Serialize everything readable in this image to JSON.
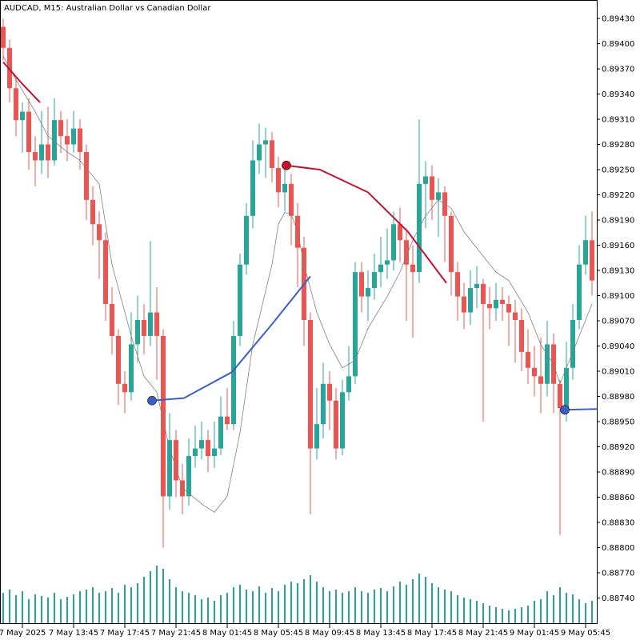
{
  "chart_data": {
    "type": "candlestick",
    "title": "AUDCAD, M15:  Australian Dollar vs Canadian Dollar",
    "up_color": "#26a69a",
    "down_color": "#ef5350",
    "open": [
      0.8942,
      0.89395,
      0.89347,
      0.89309,
      0.89319,
      0.89271,
      0.89261,
      0.8928,
      0.89261,
      0.89309,
      0.8929,
      0.8928,
      0.89299,
      0.89271,
      0.89214,
      0.89185,
      0.89166,
      0.8909,
      0.89052,
      0.88995,
      0.88985,
      0.89042,
      0.89071,
      0.89052,
      0.8908,
      0.89052,
      0.88861,
      0.88928,
      0.8888,
      0.88861,
      0.88909,
      0.88918,
      0.88928,
      0.88909,
      0.88918,
      0.88956,
      0.88947,
      0.89052,
      0.89137,
      0.89195,
      0.89261,
      0.8928,
      0.89285,
      0.89252,
      0.89223,
      0.89233,
      0.89195,
      0.89157,
      0.89071,
      0.88918,
      0.88947,
      0.88995,
      0.88975,
      0.88918,
      0.88985,
      0.89004,
      0.89128,
      0.89099,
      0.89109,
      0.89128,
      0.89137,
      0.89142,
      0.89185,
      0.89166,
      0.89137,
      0.89128,
      0.89233,
      0.89242,
      0.89214,
      0.89223,
      0.89195,
      0.89128,
      0.89099,
      0.8908,
      0.89109,
      0.89114,
      0.8909,
      0.89085,
      0.89095,
      0.8909,
      0.8908,
      0.89071,
      0.89033,
      0.89014,
      0.89004,
      0.88995,
      0.89042,
      0.88995,
      0.88966,
      0.89014,
      0.89071,
      0.89137,
      0.89166
    ],
    "high": [
      0.8943,
      0.89405,
      0.8936,
      0.8933,
      0.89335,
      0.8929,
      0.8932,
      0.89325,
      0.89335,
      0.8932,
      0.8931,
      0.8932,
      0.8931,
      0.8928,
      0.8923,
      0.892,
      0.89175,
      0.8911,
      0.8906,
      0.8901,
      0.8908,
      0.891,
      0.8909,
      0.89165,
      0.8911,
      0.8906,
      0.8896,
      0.8894,
      0.889,
      0.8893,
      0.88945,
      0.8895,
      0.8894,
      0.8895,
      0.8898,
      0.8899,
      0.8907,
      0.8915,
      0.8921,
      0.89285,
      0.89305,
      0.893,
      0.89295,
      0.89265,
      0.8925,
      0.89245,
      0.8921,
      0.8917,
      0.8908,
      0.8899,
      0.8902,
      0.8901,
      0.8899,
      0.89,
      0.8904,
      0.8914,
      0.8914,
      0.8913,
      0.8915,
      0.8917,
      0.8918,
      0.892,
      0.89205,
      0.8918,
      0.8916,
      0.8931,
      0.8926,
      0.89255,
      0.8924,
      0.8923,
      0.892,
      0.8914,
      0.89115,
      0.8913,
      0.89135,
      0.8912,
      0.8911,
      0.89115,
      0.8911,
      0.891,
      0.89095,
      0.89085,
      0.8906,
      0.8904,
      0.8905,
      0.8907,
      0.89055,
      0.89,
      0.89045,
      0.8909,
      0.8916,
      0.89195,
      0.892
    ],
    "low": [
      0.8938,
      0.8933,
      0.8929,
      0.8927,
      0.8925,
      0.8923,
      0.89245,
      0.8924,
      0.89255,
      0.8927,
      0.8926,
      0.8927,
      0.8925,
      0.8919,
      0.8916,
      0.8912,
      0.8907,
      0.8903,
      0.8897,
      0.8896,
      0.88975,
      0.8902,
      0.8903,
      0.8904,
      0.89,
      0.888,
      0.88845,
      0.8886,
      0.8884,
      0.8885,
      0.88895,
      0.88905,
      0.8889,
      0.88895,
      0.8891,
      0.8894,
      0.8894,
      0.8904,
      0.89125,
      0.8918,
      0.89245,
      0.8924,
      0.89235,
      0.89205,
      0.892,
      0.8916,
      0.8911,
      0.8904,
      0.8884,
      0.88905,
      0.8893,
      0.8894,
      0.88905,
      0.8891,
      0.88975,
      0.88995,
      0.8908,
      0.8907,
      0.89095,
      0.8911,
      0.8912,
      0.8913,
      0.8914,
      0.8907,
      0.8905,
      0.89115,
      0.8918,
      0.8919,
      0.8917,
      0.8914,
      0.891,
      0.8907,
      0.8906,
      0.89065,
      0.89085,
      0.8895,
      0.8906,
      0.8907,
      0.8907,
      0.8904,
      0.8902,
      0.8901,
      0.88995,
      0.8898,
      0.8896,
      0.8898,
      0.8896,
      0.88815,
      0.8895,
      0.89,
      0.8906,
      0.89125,
      0.891
    ],
    "close": [
      0.89395,
      0.89347,
      0.89309,
      0.89319,
      0.89271,
      0.89261,
      0.8928,
      0.89261,
      0.89309,
      0.8929,
      0.8928,
      0.89299,
      0.89271,
      0.89214,
      0.89185,
      0.89166,
      0.8909,
      0.89052,
      0.88995,
      0.88985,
      0.89042,
      0.89071,
      0.89052,
      0.8908,
      0.89052,
      0.88861,
      0.88928,
      0.8888,
      0.88861,
      0.88909,
      0.88918,
      0.88928,
      0.88909,
      0.88918,
      0.88956,
      0.88947,
      0.89052,
      0.89137,
      0.89195,
      0.89261,
      0.8928,
      0.89285,
      0.89252,
      0.89223,
      0.89233,
      0.89195,
      0.89157,
      0.89071,
      0.88918,
      0.88947,
      0.88995,
      0.88975,
      0.88918,
      0.88985,
      0.89004,
      0.89128,
      0.89099,
      0.89109,
      0.89128,
      0.89137,
      0.89142,
      0.89185,
      0.89166,
      0.89137,
      0.89128,
      0.89233,
      0.89242,
      0.89214,
      0.89223,
      0.89195,
      0.89128,
      0.89099,
      0.8908,
      0.89109,
      0.89114,
      0.8909,
      0.89085,
      0.89095,
      0.8909,
      0.8908,
      0.89071,
      0.89033,
      0.89014,
      0.89004,
      0.88995,
      0.89042,
      0.88995,
      0.88966,
      0.89014,
      0.89071,
      0.89137,
      0.89166,
      0.89118
    ],
    "volume_color": "#26a69a",
    "volume": [
      38,
      42,
      35,
      40,
      30,
      36,
      34,
      32,
      38,
      30,
      33,
      36,
      40,
      42,
      45,
      38,
      40,
      44,
      38,
      48,
      45,
      50,
      58,
      65,
      72,
      68,
      55,
      45,
      40,
      38,
      35,
      30,
      32,
      28,
      35,
      38,
      45,
      48,
      42,
      40,
      46,
      38,
      44,
      40,
      48,
      52,
      50,
      55,
      60,
      52,
      45,
      40,
      42,
      38,
      40,
      45,
      40,
      38,
      42,
      44,
      40,
      46,
      52,
      48,
      55,
      62,
      58,
      50,
      45,
      42,
      40,
      35,
      32,
      30,
      28,
      25,
      22,
      20,
      18,
      16,
      18,
      20,
      22,
      28,
      30,
      40,
      35,
      45,
      38,
      36,
      30,
      25,
      28
    ],
    "ma": {
      "color": "#808080",
      "x": [
        0,
        2,
        5,
        7,
        10,
        12,
        15,
        17,
        20,
        22,
        24,
        26,
        28,
        31,
        33,
        35,
        37,
        39,
        42,
        43,
        44,
        45,
        46,
        47,
        49,
        51,
        53,
        55,
        57,
        60,
        62,
        64,
        66,
        68,
        70,
        72,
        75,
        77,
        79,
        82,
        84,
        86,
        87,
        89,
        91,
        92
      ],
      "values": [
        0.89385,
        0.89357,
        0.89319,
        0.8929,
        0.89271,
        0.89261,
        0.89233,
        0.89137,
        0.89052,
        0.89004,
        0.88985,
        0.88918,
        0.88871,
        0.88852,
        0.88842,
        0.88861,
        0.88937,
        0.89042,
        0.89137,
        0.89185,
        0.89199,
        0.89197,
        0.89176,
        0.89137,
        0.8908,
        0.89042,
        0.89014,
        0.89023,
        0.89061,
        0.89099,
        0.89128,
        0.89166,
        0.89195,
        0.89214,
        0.89204,
        0.89176,
        0.89147,
        0.89128,
        0.89118,
        0.8908,
        0.89042,
        0.89018,
        0.88995,
        0.89033,
        0.89071,
        0.8909
      ]
    },
    "curves": [
      {
        "color": "#c8102e",
        "marker": false,
        "x": [
          0,
          3,
          5.75
        ],
        "values": [
          0.89378,
          0.89352,
          0.8933
        ]
      },
      {
        "color": "#3a5fcd",
        "marker": true,
        "x": [
          23.25,
          28.25,
          35.75,
          42,
          48
        ],
        "values": [
          0.88975,
          0.88978,
          0.89009,
          0.89066,
          0.89123
        ]
      },
      {
        "color": "#c8102e",
        "marker": true,
        "x": [
          44.25,
          49.5,
          57,
          63.25,
          69.25
        ],
        "values": [
          0.89255,
          0.8925,
          0.89223,
          0.89176,
          0.89115
        ]
      },
      {
        "color": "#3a5fcd",
        "marker": true,
        "x": [
          87.75,
          92.75
        ],
        "values": [
          0.88964,
          0.88965
        ]
      }
    ],
    "xlim": [
      -0.5,
      92.75
    ],
    "xticks": [
      {
        "value": 3,
        "label": "7 May 2025"
      },
      {
        "value": 11,
        "label": "7 May 13:45"
      },
      {
        "value": 19,
        "label": "7 May 17:45"
      },
      {
        "value": 27,
        "label": "7 May 21:45"
      },
      {
        "value": 35,
        "label": "8 May 01:45"
      },
      {
        "value": 43,
        "label": "8 May 05:45"
      },
      {
        "value": 51,
        "label": "8 May 09:45"
      },
      {
        "value": 59,
        "label": "8 May 13:45"
      },
      {
        "value": 67,
        "label": "8 May 17:45"
      },
      {
        "value": 75,
        "label": "8 May 21:45"
      },
      {
        "value": 83,
        "label": "9 May 01:45"
      },
      {
        "value": 91,
        "label": "9 May 05:45"
      }
    ],
    "ylim": [
      0.88709,
      0.89452
    ],
    "yticks": [
      {
        "value": 0.8943,
        "label": "0.89430"
      },
      {
        "value": 0.894,
        "label": "0.89400"
      },
      {
        "value": 0.8937,
        "label": "0.89370"
      },
      {
        "value": 0.8934,
        "label": "0.89340"
      },
      {
        "value": 0.8931,
        "label": "0.89310"
      },
      {
        "value": 0.8928,
        "label": "0.89280"
      },
      {
        "value": 0.8925,
        "label": "0.89250"
      },
      {
        "value": 0.8922,
        "label": "0.89220"
      },
      {
        "value": 0.8919,
        "label": "0.89190"
      },
      {
        "value": 0.8916,
        "label": "0.89160"
      },
      {
        "value": 0.8913,
        "label": "0.89130"
      },
      {
        "value": 0.891,
        "label": "0.89100"
      },
      {
        "value": 0.8907,
        "label": "0.89070"
      },
      {
        "value": 0.8904,
        "label": "0.89040"
      },
      {
        "value": 0.8901,
        "label": "0.89010"
      },
      {
        "value": 0.8898,
        "label": "0.88980"
      },
      {
        "value": 0.8895,
        "label": "0.88950"
      },
      {
        "value": 0.8892,
        "label": "0.88920"
      },
      {
        "value": 0.8889,
        "label": "0.88890"
      },
      {
        "value": 0.8886,
        "label": "0.88860"
      },
      {
        "value": 0.8883,
        "label": "0.88830"
      },
      {
        "value": 0.888,
        "label": "0.88800"
      },
      {
        "value": 0.8877,
        "label": "0.88770"
      },
      {
        "value": 0.8874,
        "label": "0.88740"
      }
    ]
  }
}
